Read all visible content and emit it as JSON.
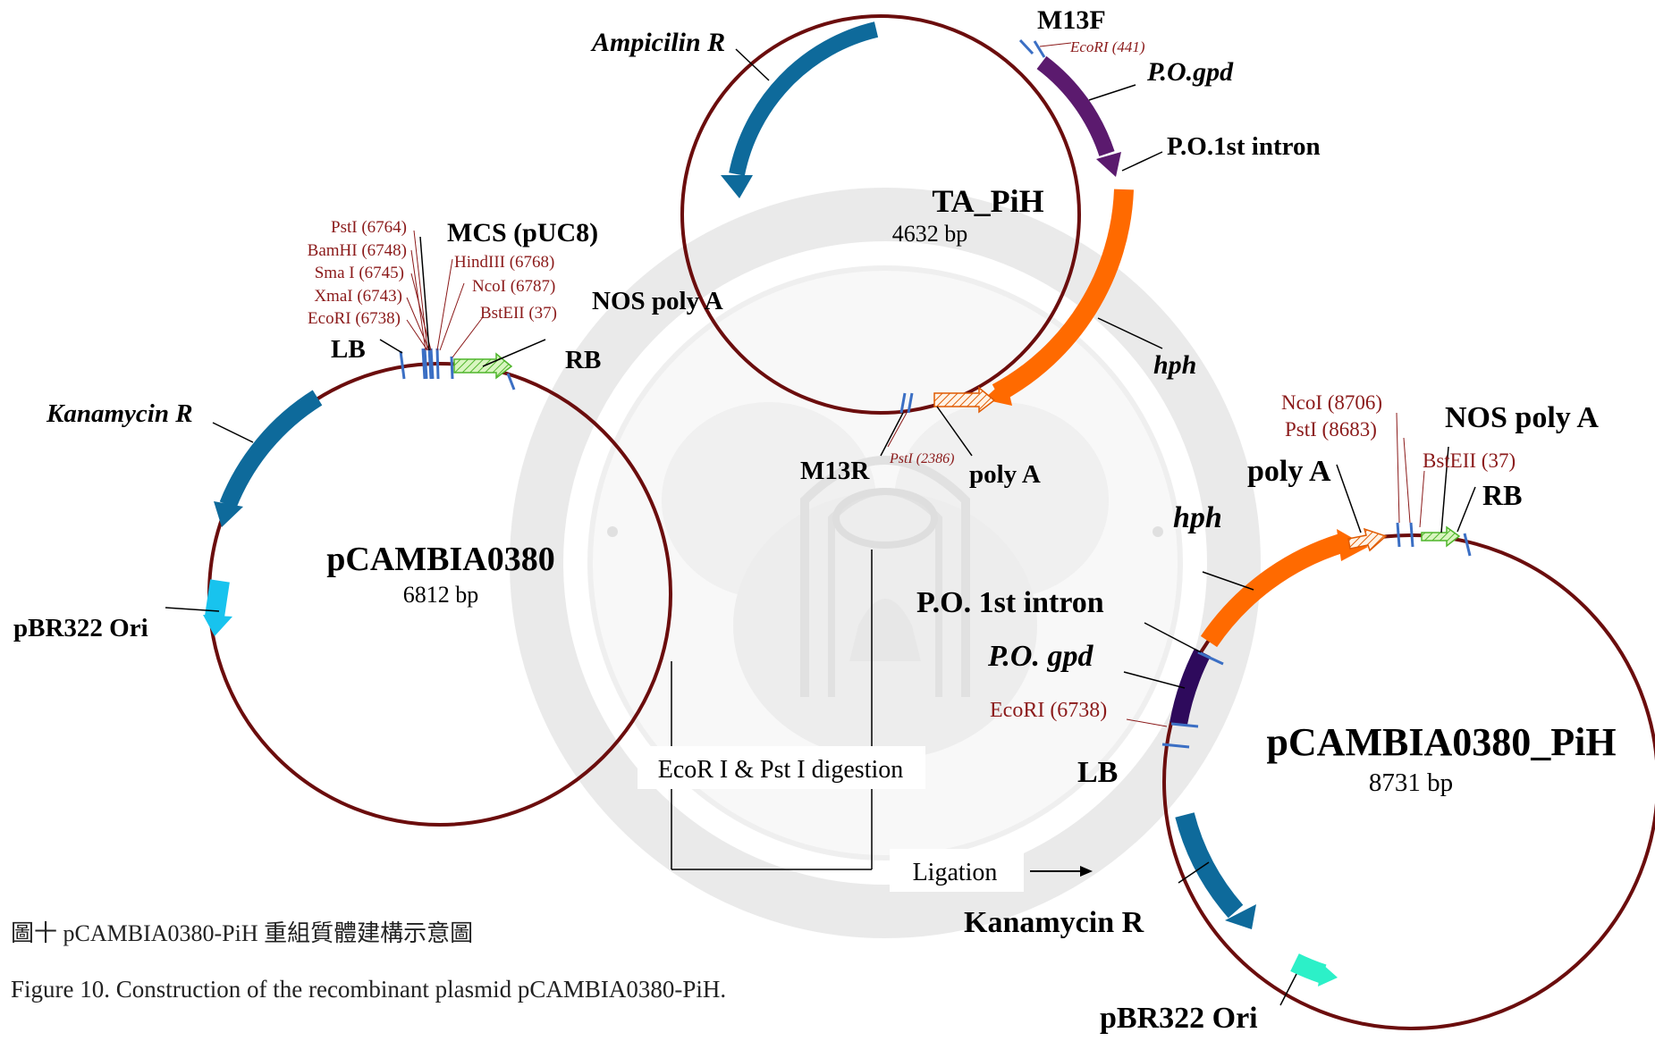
{
  "plasmids": {
    "ta_pih": {
      "name": "TA_PiH",
      "size": "4632 bp",
      "labels": {
        "m13f": "M13F",
        "ecori": "EcoRI (441)",
        "pogpd": "P.O.gpd",
        "intron": "P.O.1st intron",
        "hph": "hph",
        "polya": "poly A",
        "psti": "PstI (2386)",
        "m13r": "M13R",
        "amp": "Ampicilin R"
      }
    },
    "pcambia0380": {
      "name": "pCAMBIA0380",
      "size": "6812 bp",
      "labels": {
        "mcs": "MCS (pUC8)",
        "pst": "PstI (6764)",
        "bam": "BamHI (6748)",
        "sma": "Sma I (6745)",
        "xma": "XmaI (6743)",
        "eco": "EcoRI (6738)",
        "hind": "HindIII (6768)",
        "nco": "NcoI (6787)",
        "bst": "BstEII (37)",
        "nos": "NOS poly A",
        "lb": "LB",
        "rb": "RB",
        "kan": "Kanamycin R",
        "ori": "pBR322 Ori"
      }
    },
    "pcambia0380_pih": {
      "name": "pCAMBIA0380_PiH",
      "size": "8731 bp",
      "labels": {
        "nco": "NcoI (8706)",
        "pst": "PstI (8683)",
        "nos": "NOS poly A",
        "polya": "poly A",
        "bst": "BstEII (37)",
        "rb": "RB",
        "hph": "hph",
        "intron": "P.O. 1st intron",
        "pogpd": "P.O. gpd",
        "ecori": "EcoRI (6738)",
        "lb": "LB",
        "kan": "Kanamycin R",
        "ori": "pBR322 Ori"
      }
    }
  },
  "process": {
    "digestion": "EcoR I & Pst I digestion",
    "ligation": "Ligation"
  },
  "caption": {
    "chinese": "圖十 pCAMBIA0380-PiH 重組質體建構示意圖",
    "english": "Figure 10. Construction of the recombinant plasmid pCAMBIA0380-PiH."
  },
  "colors": {
    "backbone": "#6b0d0d",
    "ampicilin": "#0e6a9b",
    "gpd": "#5b1a6e",
    "hph": "#ff6a00",
    "kanamycin": "#0e6a9b",
    "ori_left": "#18c3ee",
    "ori_right": "#2cf0c8",
    "site_text": "#8b1a1a",
    "marker": "#3b6fc4"
  }
}
